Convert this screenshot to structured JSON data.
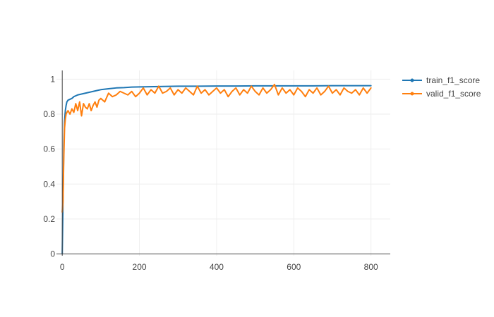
{
  "chart_data": {
    "type": "line",
    "title": "",
    "xlabel": "",
    "ylabel": "",
    "xlim": [
      -15,
      850
    ],
    "ylim": [
      -0.01,
      1.05
    ],
    "x_ticks": [
      0,
      200,
      400,
      600,
      800
    ],
    "y_ticks": [
      0,
      0.2,
      0.4,
      0.6,
      0.8,
      1
    ],
    "x_tick_labels": [
      "0",
      "200",
      "400",
      "600",
      "800"
    ],
    "y_tick_labels": [
      "0",
      "0.2",
      "0.4",
      "0.6",
      "0.8",
      "1"
    ],
    "grid": true,
    "legend_position": "top-right",
    "series": [
      {
        "name": "train_f1_score",
        "color": "#1f77b4",
        "x": [
          0,
          2,
          4,
          6,
          8,
          10,
          12,
          15,
          20,
          25,
          30,
          35,
          40,
          50,
          60,
          70,
          80,
          90,
          100,
          120,
          140,
          160,
          180,
          200,
          250,
          300,
          350,
          400,
          450,
          500,
          550,
          600,
          650,
          700,
          750,
          800
        ],
        "y": [
          0.0,
          0.3,
          0.62,
          0.76,
          0.82,
          0.85,
          0.87,
          0.88,
          0.885,
          0.89,
          0.9,
          0.905,
          0.91,
          0.915,
          0.92,
          0.925,
          0.93,
          0.935,
          0.94,
          0.945,
          0.95,
          0.952,
          0.955,
          0.956,
          0.958,
          0.96,
          0.96,
          0.961,
          0.961,
          0.962,
          0.962,
          0.962,
          0.962,
          0.963,
          0.963,
          0.963
        ]
      },
      {
        "name": "valid_f1_score",
        "color": "#ff7f0e",
        "x": [
          0,
          2,
          4,
          6,
          8,
          10,
          12,
          15,
          20,
          25,
          30,
          35,
          40,
          45,
          50,
          55,
          60,
          65,
          70,
          75,
          80,
          85,
          90,
          95,
          100,
          110,
          120,
          130,
          140,
          150,
          160,
          170,
          180,
          190,
          200,
          210,
          220,
          230,
          240,
          250,
          260,
          270,
          280,
          290,
          300,
          310,
          320,
          330,
          340,
          350,
          360,
          370,
          380,
          390,
          400,
          410,
          420,
          430,
          440,
          450,
          460,
          470,
          480,
          490,
          500,
          510,
          520,
          530,
          540,
          550,
          560,
          570,
          580,
          590,
          600,
          610,
          620,
          630,
          640,
          650,
          660,
          670,
          680,
          690,
          700,
          710,
          720,
          730,
          740,
          750,
          760,
          770,
          780,
          790,
          800
        ],
        "y": [
          0.24,
          0.3,
          0.55,
          0.72,
          0.77,
          0.8,
          0.81,
          0.82,
          0.8,
          0.83,
          0.81,
          0.86,
          0.82,
          0.87,
          0.79,
          0.86,
          0.84,
          0.83,
          0.86,
          0.82,
          0.85,
          0.87,
          0.84,
          0.88,
          0.89,
          0.87,
          0.92,
          0.9,
          0.91,
          0.93,
          0.92,
          0.91,
          0.93,
          0.9,
          0.92,
          0.95,
          0.91,
          0.94,
          0.92,
          0.96,
          0.92,
          0.93,
          0.95,
          0.91,
          0.94,
          0.92,
          0.95,
          0.93,
          0.91,
          0.96,
          0.92,
          0.94,
          0.91,
          0.93,
          0.95,
          0.92,
          0.94,
          0.9,
          0.93,
          0.95,
          0.91,
          0.94,
          0.92,
          0.96,
          0.93,
          0.91,
          0.95,
          0.92,
          0.94,
          0.97,
          0.91,
          0.95,
          0.92,
          0.94,
          0.91,
          0.95,
          0.93,
          0.9,
          0.94,
          0.92,
          0.95,
          0.91,
          0.93,
          0.96,
          0.92,
          0.94,
          0.91,
          0.95,
          0.93,
          0.92,
          0.94,
          0.91,
          0.95,
          0.92,
          0.95
        ]
      }
    ]
  }
}
